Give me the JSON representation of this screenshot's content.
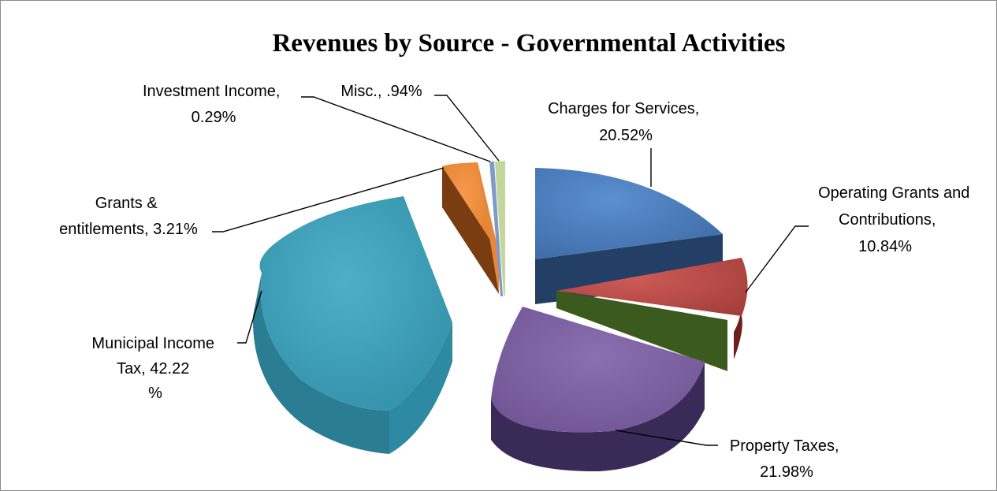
{
  "chart_data": {
    "type": "pie",
    "title": "Revenues by Source - Governmental Activities",
    "slices": [
      {
        "name": "Charges for Services",
        "value": 20.52,
        "label_lines": [
          "Charges for Services,",
          "20.52%"
        ],
        "color": "#4F81BD"
      },
      {
        "name": "Operating Grants and Contributions",
        "value": 10.84,
        "label_lines": [
          "Operating Grants and",
          "Contributions,",
          "10.84%"
        ],
        "color": "#C0504D"
      },
      {
        "name": "Property Taxes",
        "value": 21.98,
        "label_lines": [
          "Property Taxes,",
          "21.98%"
        ],
        "color": "#8064A2"
      },
      {
        "name": "Municipal Income Tax",
        "value": 42.22,
        "label_lines": [
          "Municipal Income",
          "Tax, 42.22",
          "%"
        ],
        "color": "#4BACC6"
      },
      {
        "name": "Grants & entitlements",
        "value": 3.21,
        "label_lines": [
          "Grants &",
          "entitlements, 3.21%"
        ],
        "color": "#F79646"
      },
      {
        "name": "Investment Income",
        "value": 0.29,
        "label_lines": [
          "Investment Income,",
          "0.29%"
        ],
        "color": "#7E9BC8"
      },
      {
        "name": "Misc.",
        "value": 0.94,
        "label_lines": [
          "Misc., .94%"
        ],
        "color": "#C3D69B"
      }
    ],
    "unlabeled_slice_color": "#9BBB59",
    "style": "3d-exploded-pie",
    "legend": "none"
  }
}
